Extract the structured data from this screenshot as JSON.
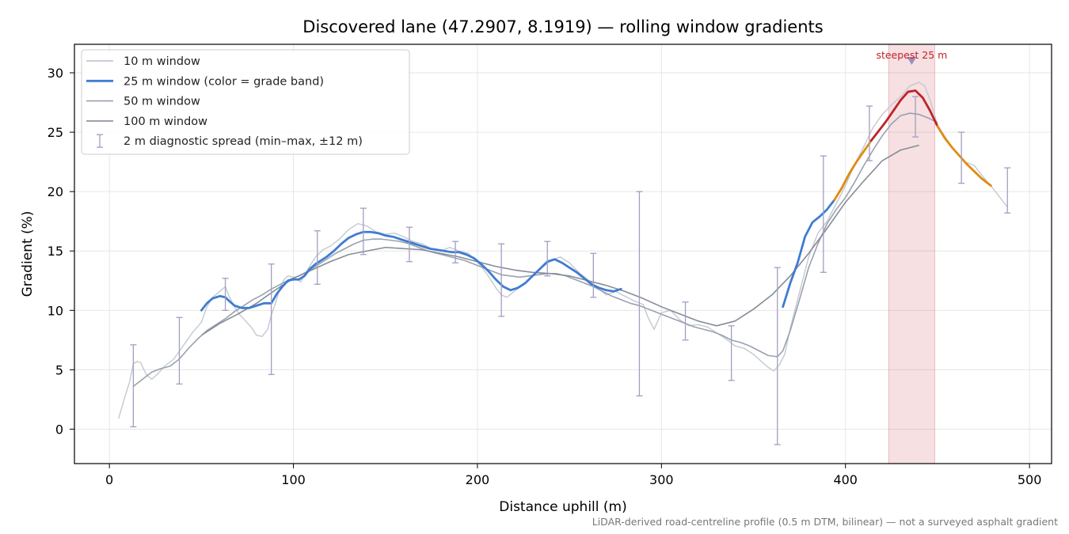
{
  "chart_data": {
    "type": "line",
    "title": "Discovered lane (47.2907, 8.1919) — rolling window gradients",
    "xlabel": "Distance uphill (m)",
    "ylabel": "Gradient (%)",
    "xlim": [
      -19,
      512
    ],
    "ylim": [
      -2.9,
      32.4
    ],
    "xticks": [
      0,
      100,
      200,
      300,
      400,
      500
    ],
    "yticks": [
      0,
      5,
      10,
      15,
      20,
      25,
      30
    ],
    "grid": true,
    "legend_position": "upper-left",
    "footnote": "LiDAR-derived road-centreline profile (0.5 m DTM, bilinear) — not a surveyed asphalt gradient",
    "highlight": {
      "label": "steepest 25 m",
      "x_range": [
        423.5,
        448.5
      ],
      "marker": {
        "x": 436,
        "y": 31.0
      },
      "color": "#c0222a"
    },
    "series": [
      {
        "name": "10 m window",
        "color": "#c3c8d2",
        "width": 1.4,
        "x": [
          5,
          8,
          11,
          13,
          15,
          17,
          20,
          23,
          26,
          30,
          35,
          40,
          45,
          50,
          53,
          56,
          60,
          63,
          65,
          68,
          71,
          74,
          77,
          80,
          83,
          86,
          88,
          90,
          93,
          95,
          97,
          100,
          104,
          108,
          112,
          116,
          120,
          125,
          130,
          135,
          140,
          145,
          150,
          155,
          160,
          165,
          170,
          175,
          180,
          185,
          190,
          195,
          200,
          205,
          210,
          213,
          216,
          220,
          225,
          230,
          235,
          240,
          245,
          250,
          255,
          260,
          265,
          270,
          275,
          280,
          285,
          290,
          293,
          296,
          300,
          305,
          310,
          315,
          320,
          325,
          330,
          335,
          340,
          345,
          350,
          355,
          358,
          361,
          364,
          367,
          370,
          375,
          380,
          385,
          390,
          395,
          400,
          405,
          410,
          415,
          420,
          425,
          430,
          435,
          440,
          443,
          446,
          450,
          455,
          460,
          465,
          470,
          475,
          480,
          485,
          488
        ],
        "y": [
          0.9,
          2.5,
          4.0,
          5.5,
          5.7,
          5.6,
          4.6,
          4.2,
          4.6,
          5.3,
          5.9,
          7.0,
          8.1,
          9.0,
          10.3,
          11.1,
          11.6,
          12.0,
          11.2,
          10.3,
          9.6,
          9.1,
          8.6,
          7.9,
          7.8,
          8.4,
          9.6,
          10.5,
          12.0,
          12.6,
          12.9,
          12.8,
          12.4,
          13.5,
          14.5,
          15.1,
          15.4,
          16.0,
          16.8,
          17.3,
          17.1,
          16.6,
          16.4,
          16.5,
          16.2,
          15.8,
          15.6,
          15.2,
          15.0,
          15.3,
          15.0,
          14.8,
          14.1,
          13.1,
          11.9,
          11.3,
          11.1,
          11.6,
          12.2,
          12.9,
          13.6,
          14.2,
          14.5,
          14.0,
          13.2,
          12.6,
          11.9,
          11.3,
          11.6,
          11.2,
          10.8,
          10.5,
          9.3,
          8.4,
          9.8,
          10.0,
          9.2,
          8.7,
          8.8,
          8.6,
          8.1,
          7.6,
          7.0,
          6.8,
          6.3,
          5.6,
          5.2,
          4.9,
          5.4,
          6.3,
          8.5,
          11.5,
          14.5,
          16.5,
          17.5,
          19.0,
          20.5,
          22.3,
          23.8,
          25.4,
          26.5,
          27.3,
          28.0,
          28.9,
          29.2,
          28.9,
          27.7,
          25.6,
          24.4,
          23.3,
          22.5,
          22.2,
          21.2,
          20.3,
          19.3,
          18.7
        ]
      },
      {
        "name": "25 m window (color = grade band)",
        "color": "#3f7cd1",
        "width": 2.8,
        "color_bands": [
          {
            "min": 0,
            "max": 20,
            "color": "#3f7cd1"
          },
          {
            "min": 20,
            "max": 25,
            "color": "#e08b10"
          },
          {
            "min": 25,
            "max": 100,
            "color": "#c0222a"
          }
        ],
        "x": [
          50,
          53,
          56,
          60,
          63,
          65,
          68,
          72,
          76,
          80,
          84,
          88,
          91,
          94,
          97,
          100,
          103,
          106,
          109,
          112,
          115,
          118,
          122,
          126,
          130,
          134,
          138,
          142,
          146,
          150,
          154,
          158,
          162,
          166,
          170,
          174,
          178,
          182,
          186,
          190,
          194,
          198,
          202,
          206,
          210,
          214,
          218,
          222,
          226,
          230,
          234,
          238,
          242,
          246,
          250,
          254,
          258,
          262,
          266,
          270,
          274,
          278,
          366,
          370,
          374,
          378,
          382,
          386,
          390,
          394,
          398,
          402,
          406,
          410,
          414,
          418,
          422,
          426,
          430,
          434,
          438,
          442,
          446,
          450,
          454,
          458,
          462,
          466,
          470,
          474,
          479
        ],
        "y": [
          10.0,
          10.6,
          11.0,
          11.2,
          11.1,
          10.8,
          10.4,
          10.2,
          10.2,
          10.4,
          10.6,
          10.6,
          11.4,
          12.0,
          12.5,
          12.6,
          12.6,
          12.9,
          13.5,
          13.9,
          14.2,
          14.5,
          15.0,
          15.6,
          16.1,
          16.4,
          16.6,
          16.6,
          16.5,
          16.3,
          16.2,
          16.0,
          15.8,
          15.6,
          15.4,
          15.2,
          15.1,
          15.0,
          14.9,
          14.9,
          14.7,
          14.4,
          13.9,
          13.3,
          12.6,
          12.0,
          11.7,
          11.9,
          12.3,
          12.9,
          13.5,
          14.1,
          14.3,
          14.0,
          13.6,
          13.2,
          12.7,
          12.2,
          11.9,
          11.7,
          11.6,
          11.8,
          10.3,
          12.3,
          14.0,
          16.2,
          17.4,
          17.9,
          18.5,
          19.3,
          20.3,
          21.5,
          22.5,
          23.4,
          24.3,
          25.1,
          25.9,
          26.8,
          27.7,
          28.4,
          28.5,
          27.9,
          26.8,
          25.5,
          24.5,
          23.7,
          23.0,
          22.3,
          21.7,
          21.1,
          20.5
        ]
      },
      {
        "name": "50 m window",
        "color": "#99a1b0",
        "width": 1.6,
        "x": [
          13,
          18,
          23,
          28,
          33,
          38,
          43,
          48,
          53,
          58,
          63,
          68,
          73,
          78,
          83,
          88,
          93,
          98,
          103,
          108,
          113,
          118,
          123,
          128,
          133,
          138,
          143,
          148,
          153,
          158,
          163,
          168,
          173,
          178,
          183,
          188,
          193,
          198,
          203,
          208,
          213,
          218,
          223,
          228,
          233,
          238,
          243,
          248,
          253,
          258,
          263,
          268,
          273,
          278,
          283,
          288,
          293,
          298,
          303,
          308,
          313,
          318,
          323,
          328,
          333,
          338,
          343,
          348,
          353,
          358,
          363,
          366,
          370,
          375,
          380,
          385,
          390,
          395,
          400,
          405,
          410,
          415,
          420,
          425,
          430,
          435,
          440,
          445,
          450
        ],
        "y": [
          3.6,
          4.2,
          4.8,
          5.1,
          5.3,
          5.9,
          6.8,
          7.6,
          8.3,
          8.8,
          9.3,
          9.9,
          10.4,
          10.9,
          11.3,
          11.8,
          12.2,
          12.6,
          12.9,
          13.3,
          13.8,
          14.3,
          14.8,
          15.2,
          15.6,
          15.9,
          16.0,
          16.0,
          15.9,
          15.8,
          15.6,
          15.3,
          15.0,
          14.8,
          14.6,
          14.4,
          14.2,
          13.9,
          13.6,
          13.3,
          13.0,
          12.9,
          12.8,
          12.9,
          13.0,
          13.1,
          13.1,
          12.9,
          12.6,
          12.3,
          12.0,
          11.6,
          11.2,
          10.9,
          10.6,
          10.4,
          10.1,
          9.8,
          9.5,
          9.2,
          8.9,
          8.6,
          8.4,
          8.2,
          7.9,
          7.5,
          7.3,
          7.0,
          6.6,
          6.2,
          6.1,
          6.6,
          8.3,
          10.9,
          13.6,
          15.6,
          17.3,
          18.5,
          19.5,
          20.8,
          22.2,
          23.5,
          24.7,
          25.7,
          26.4,
          26.6,
          26.5,
          26.2,
          25.8
        ]
      },
      {
        "name": "100 m window",
        "color": "#868c98",
        "width": 1.6,
        "x": [
          50,
          60,
          70,
          80,
          90,
          100,
          110,
          120,
          130,
          140,
          150,
          160,
          170,
          180,
          190,
          200,
          210,
          220,
          230,
          240,
          250,
          260,
          270,
          280,
          290,
          300,
          310,
          320,
          330,
          340,
          350,
          360,
          370,
          380,
          390,
          400,
          410,
          420,
          430,
          440
        ],
        "y": [
          7.9,
          8.9,
          9.7,
          10.6,
          11.7,
          12.7,
          13.4,
          14.1,
          14.7,
          15.0,
          15.3,
          15.2,
          15.1,
          14.8,
          14.5,
          14.1,
          13.7,
          13.4,
          13.2,
          13.1,
          12.9,
          12.5,
          12.1,
          11.6,
          11.0,
          10.3,
          9.7,
          9.1,
          8.7,
          9.1,
          10.1,
          11.3,
          12.9,
          14.8,
          16.9,
          19.1,
          20.9,
          22.6,
          23.5,
          23.9
        ]
      }
    ],
    "spread_name": "2 m diagnostic spread (min–max, ±12 m)",
    "spread_color": "#a39dc0",
    "spread": [
      {
        "x": 13,
        "min": 0.2,
        "max": 7.1
      },
      {
        "x": 38,
        "min": 3.8,
        "max": 9.4
      },
      {
        "x": 63,
        "min": 10.0,
        "max": 12.7
      },
      {
        "x": 88,
        "min": 4.6,
        "max": 13.9
      },
      {
        "x": 113,
        "min": 12.2,
        "max": 16.7
      },
      {
        "x": 138,
        "min": 14.7,
        "max": 18.6
      },
      {
        "x": 163,
        "min": 14.1,
        "max": 17.0
      },
      {
        "x": 188,
        "min": 14.0,
        "max": 15.8
      },
      {
        "x": 213,
        "min": 9.5,
        "max": 15.6
      },
      {
        "x": 238,
        "min": 12.9,
        "max": 15.8
      },
      {
        "x": 263,
        "min": 11.1,
        "max": 14.8
      },
      {
        "x": 288,
        "min": 2.8,
        "max": 20.0
      },
      {
        "x": 313,
        "min": 7.5,
        "max": 10.7
      },
      {
        "x": 338,
        "min": 4.1,
        "max": 8.7
      },
      {
        "x": 363,
        "min": -1.3,
        "max": 13.6
      },
      {
        "x": 388,
        "min": 13.2,
        "max": 23.0
      },
      {
        "x": 413,
        "min": 22.6,
        "max": 27.2
      },
      {
        "x": 438,
        "min": 24.6,
        "max": 28.0
      },
      {
        "x": 463,
        "min": 20.7,
        "max": 25.0
      },
      {
        "x": 488,
        "min": 18.2,
        "max": 22.0
      }
    ]
  }
}
